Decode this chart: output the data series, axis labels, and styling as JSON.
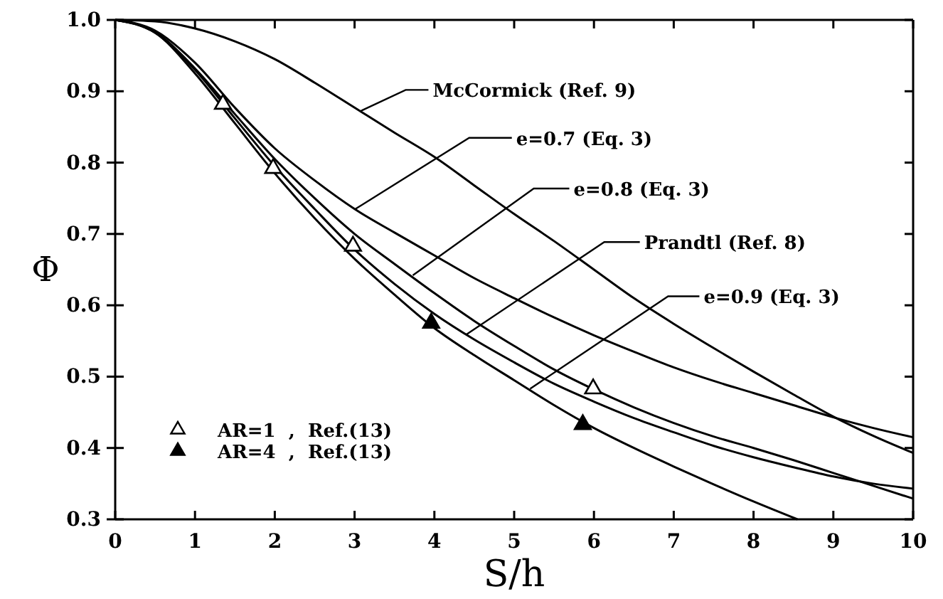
{
  "chart_data": {
    "type": "line",
    "xlabel": "S/h",
    "ylabel": "Φ",
    "xlim": [
      0,
      10
    ],
    "ylim": [
      0.3,
      1.0
    ],
    "xticks": [
      0,
      1,
      2,
      3,
      4,
      5,
      6,
      7,
      8,
      9,
      10
    ],
    "yticks": [
      0.3,
      0.4,
      0.5,
      0.6,
      0.7,
      0.8,
      0.9,
      {
        "value": 1,
        "label": "1.0"
      }
    ],
    "grid": false,
    "legend": "bottom left",
    "line_style": "solid",
    "series": [
      {
        "color": "#000000",
        "x": [
          0,
          0.5,
          1,
          1.5,
          2,
          2.5,
          3,
          3.5,
          4,
          4.5,
          5,
          5.5,
          6,
          6.5,
          7,
          7.5,
          8,
          8.5,
          9,
          9.5,
          10
        ],
        "values": [
          1.0,
          0.998,
          0.988,
          0.97,
          0.945,
          0.912,
          0.877,
          0.842,
          0.808,
          0.768,
          0.728,
          0.69,
          0.65,
          0.61,
          0.574,
          0.54,
          0.507,
          0.475,
          0.444,
          0.417,
          0.393
        ]
      },
      {
        "color": "#000000",
        "x": [
          0,
          0.5,
          1,
          1.5,
          2,
          2.5,
          3,
          3.5,
          4,
          4.5,
          5,
          5.5,
          6,
          6.5,
          7,
          7.5,
          8,
          8.5,
          9,
          9.5,
          10
        ],
        "values": [
          1.0,
          0.985,
          0.94,
          0.877,
          0.82,
          0.775,
          0.735,
          0.702,
          0.67,
          0.638,
          0.61,
          0.583,
          0.558,
          0.535,
          0.513,
          0.494,
          0.477,
          0.46,
          0.443,
          0.428,
          0.415
        ]
      },
      {
        "color": "#000000",
        "x": [
          0,
          0.5,
          1,
          1.5,
          2,
          2.5,
          3,
          3.5,
          4,
          4.5,
          5,
          5.5,
          6,
          6.5,
          7,
          7.5,
          8,
          8.5,
          9,
          9.5,
          10
        ],
        "values": [
          1.0,
          0.983,
          0.932,
          0.868,
          0.805,
          0.75,
          0.7,
          0.658,
          0.617,
          0.578,
          0.543,
          0.51,
          0.482,
          0.457,
          0.435,
          0.416,
          0.4,
          0.383,
          0.365,
          0.347,
          0.329
        ]
      },
      {
        "color": "#000000",
        "x": [
          0,
          0.5,
          1,
          1.5,
          2,
          2.5,
          3,
          3.5,
          4,
          4.5,
          5,
          5.5,
          6,
          6.5,
          7,
          7.5,
          8,
          8.5,
          9,
          9.5,
          10
        ],
        "values": [
          1.0,
          0.982,
          0.93,
          0.862,
          0.795,
          0.735,
          0.678,
          0.63,
          0.588,
          0.552,
          0.52,
          0.49,
          0.465,
          0.442,
          0.422,
          0.403,
          0.387,
          0.373,
          0.36,
          0.35,
          0.343
        ]
      },
      {
        "color": "#000000",
        "x": [
          0,
          0.5,
          1,
          1.5,
          2,
          2.5,
          3,
          3.5,
          4,
          4.5,
          5,
          5.5,
          6,
          6.5,
          7,
          7.5,
          8,
          8.55
        ],
        "values": [
          1.0,
          0.982,
          0.925,
          0.855,
          0.785,
          0.722,
          0.665,
          0.615,
          0.568,
          0.53,
          0.495,
          0.46,
          0.428,
          0.4,
          0.374,
          0.349,
          0.325,
          0.3
        ]
      },
      {
        "type": "scatter",
        "name": "AR=1  ,  Ref.(13)",
        "color": "#000000",
        "marker": "triangle",
        "x": [
          1.35,
          1.98,
          2.98,
          5.99
        ],
        "values": [
          0.882,
          0.792,
          0.683,
          0.483
        ]
      },
      {
        "type": "scatter",
        "name": "AR=4  ,  Ref.(13)",
        "color": "#000000",
        "marker": "triangle",
        "x": [
          3.96,
          5.86
        ],
        "values": [
          0.575,
          0.433
        ]
      }
    ],
    "annotations": [
      {
        "text": "McCormick (Ref. 9)",
        "x": 3.07,
        "y": 0.872
      },
      {
        "text": "e=0.7 (Eq. 3)",
        "x": 3.01,
        "y": 0.735
      },
      {
        "text": "e=0.8 (Eq. 3)",
        "x": 3.73,
        "y": 0.642
      },
      {
        "text": "Prandtl (Ref. 8)",
        "x": 4.4,
        "y": 0.559
      },
      {
        "text": "e=0.9 (Eq. 3)",
        "x": 5.2,
        "y": 0.483
      }
    ]
  }
}
